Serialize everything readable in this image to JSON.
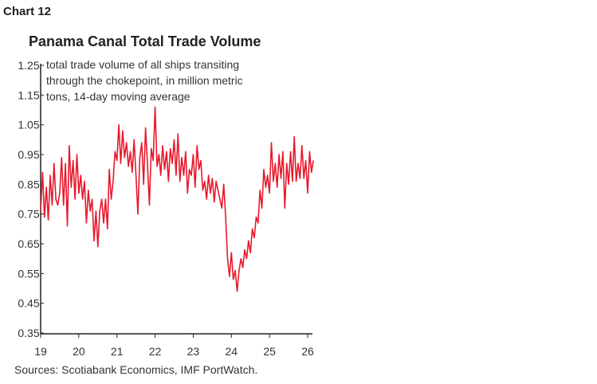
{
  "header": {
    "chart_number": "Chart 12"
  },
  "chart_data": {
    "type": "line",
    "title": "Panama Canal Total Trade Volume",
    "annotation": [
      "total trade volume of all ships transiting",
      "through the chokepoint, in million metric",
      "tons, 14-day moving average"
    ],
    "xlabel": "",
    "ylabel": "",
    "xlim": [
      19,
      26.15
    ],
    "ylim": [
      0.35,
      1.25
    ],
    "x_ticks": [
      "19",
      "20",
      "21",
      "22",
      "23",
      "24",
      "25",
      "26"
    ],
    "y_ticks": [
      "1.25",
      "1.15",
      "1.05",
      "0.95",
      "0.85",
      "0.75",
      "0.65",
      "0.55",
      "0.45",
      "0.35"
    ],
    "grid": false,
    "series": [
      {
        "name": "Total trade volume",
        "color": "#e8192c",
        "x": [
          19.0,
          19.05,
          19.1,
          19.15,
          19.2,
          19.25,
          19.3,
          19.35,
          19.4,
          19.45,
          19.5,
          19.55,
          19.6,
          19.65,
          19.7,
          19.75,
          19.8,
          19.85,
          19.9,
          19.95,
          20.0,
          20.05,
          20.1,
          20.15,
          20.2,
          20.25,
          20.3,
          20.35,
          20.4,
          20.45,
          20.5,
          20.55,
          20.6,
          20.65,
          20.7,
          20.75,
          20.8,
          20.85,
          20.9,
          20.95,
          21.0,
          21.05,
          21.1,
          21.15,
          21.2,
          21.25,
          21.3,
          21.35,
          21.4,
          21.45,
          21.5,
          21.55,
          21.6,
          21.65,
          21.7,
          21.75,
          21.8,
          21.85,
          21.9,
          21.95,
          22.0,
          22.05,
          22.1,
          22.15,
          22.2,
          22.25,
          22.3,
          22.35,
          22.4,
          22.45,
          22.5,
          22.55,
          22.6,
          22.65,
          22.7,
          22.75,
          22.8,
          22.85,
          22.9,
          22.95,
          23.0,
          23.05,
          23.1,
          23.15,
          23.2,
          23.25,
          23.3,
          23.35,
          23.4,
          23.45,
          23.5,
          23.55,
          23.6,
          23.65,
          23.7,
          23.75,
          23.8,
          23.85,
          23.9,
          23.95,
          24.0,
          24.05,
          24.1,
          24.15,
          24.2,
          24.25,
          24.3,
          24.35,
          24.4,
          24.45,
          24.5,
          24.55,
          24.6,
          24.65,
          24.7,
          24.75,
          24.8,
          24.85,
          24.9,
          24.95,
          25.0,
          25.05,
          25.1,
          25.15,
          25.2,
          25.25,
          25.3,
          25.35,
          25.4,
          25.45,
          25.5,
          25.55,
          25.6,
          25.65,
          25.7,
          25.75,
          25.8,
          25.85,
          25.9,
          25.95,
          26.0,
          26.05,
          26.1,
          26.15
        ],
        "values": [
          0.76,
          0.89,
          0.74,
          0.84,
          0.73,
          0.88,
          0.78,
          0.92,
          0.8,
          0.78,
          0.82,
          0.94,
          0.78,
          0.92,
          0.71,
          0.98,
          0.84,
          0.93,
          0.8,
          0.95,
          0.82,
          0.88,
          0.8,
          0.86,
          0.72,
          0.83,
          0.76,
          0.8,
          0.66,
          0.76,
          0.64,
          0.76,
          0.8,
          0.72,
          0.8,
          0.7,
          0.9,
          0.8,
          0.86,
          0.96,
          0.93,
          1.05,
          0.92,
          1.03,
          0.94,
          0.99,
          0.91,
          0.96,
          0.89,
          1.0,
          0.88,
          0.75,
          0.94,
          0.99,
          0.85,
          1.04,
          0.92,
          0.78,
          0.97,
          0.93,
          1.11,
          0.91,
          0.95,
          0.88,
          0.98,
          0.9,
          0.96,
          0.86,
          0.97,
          0.92,
          1.0,
          0.88,
          1.02,
          0.86,
          0.94,
          0.88,
          0.96,
          0.82,
          0.9,
          0.88,
          0.95,
          0.84,
          0.98,
          0.9,
          0.93,
          0.83,
          0.86,
          0.8,
          0.88,
          0.82,
          0.87,
          0.79,
          0.86,
          0.83,
          0.8,
          0.77,
          0.85,
          0.74,
          0.6,
          0.54,
          0.62,
          0.53,
          0.56,
          0.49,
          0.56,
          0.6,
          0.57,
          0.63,
          0.6,
          0.66,
          0.62,
          0.7,
          0.67,
          0.74,
          0.72,
          0.83,
          0.77,
          0.9,
          0.84,
          0.88,
          0.82,
          0.99,
          0.86,
          0.92,
          0.84,
          0.95,
          0.87,
          0.96,
          0.77,
          0.92,
          0.85,
          0.96,
          0.86,
          1.01,
          0.86,
          0.92,
          0.87,
          0.98,
          0.87,
          0.93,
          0.82,
          0.96,
          0.89,
          0.93
        ]
      }
    ]
  },
  "footer": {
    "source": "Sources: Scotiabank Economics, IMF PortWatch."
  }
}
